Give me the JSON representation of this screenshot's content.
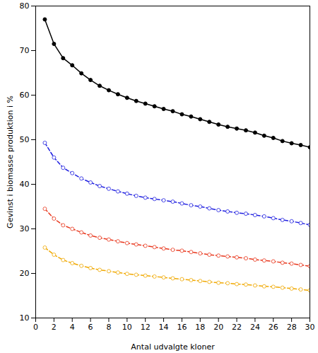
{
  "chart_data": {
    "type": "line",
    "x_label": "Antal udvalgte kloner",
    "y_label": "Gevinst i biomasse produktion i %",
    "x": [
      1,
      2,
      3,
      4,
      5,
      6,
      7,
      8,
      9,
      10,
      11,
      12,
      13,
      14,
      15,
      16,
      17,
      18,
      19,
      20,
      21,
      22,
      23,
      24,
      25,
      26,
      27,
      28,
      29,
      30
    ],
    "series": [
      {
        "color": "#000000",
        "marker": "filled_circle",
        "line_style": "solid",
        "values": [
          77,
          71.5,
          68.3,
          66.7,
          64.9,
          63.4,
          62.1,
          61.1,
          60.2,
          59.4,
          58.7,
          58.1,
          57.5,
          56.9,
          56.4,
          55.7,
          55.2,
          54.6,
          54.0,
          53.4,
          52.9,
          52.5,
          52.1,
          51.6,
          50.9,
          50.4,
          49.7,
          49.2,
          48.8,
          48.3
        ]
      },
      {
        "color": "#1f1fe0",
        "marker": "open_circle",
        "line_style": "dashed",
        "values": [
          49.3,
          46.0,
          43.7,
          42.5,
          41.3,
          40.4,
          39.6,
          39.0,
          38.4,
          37.9,
          37.4,
          37.0,
          36.7,
          36.4,
          36.1,
          35.7,
          35.3,
          35.0,
          34.6,
          34.2,
          33.9,
          33.6,
          33.4,
          33.1,
          32.8,
          32.4,
          32.0,
          31.7,
          31.3,
          30.9
        ]
      },
      {
        "color": "#e8361c",
        "marker": "open_circle",
        "line_style": "dashed",
        "values": [
          34.5,
          32.3,
          30.8,
          30.0,
          29.2,
          28.5,
          28.0,
          27.6,
          27.2,
          26.8,
          26.5,
          26.2,
          25.9,
          25.6,
          25.3,
          25.1,
          24.8,
          24.5,
          24.2,
          24.0,
          23.8,
          23.6,
          23.4,
          23.1,
          22.9,
          22.7,
          22.4,
          22.2,
          21.9,
          21.6
        ]
      },
      {
        "color": "#f0a800",
        "marker": "open_circle",
        "line_style": "dashed",
        "values": [
          25.8,
          24.2,
          23.0,
          22.3,
          21.7,
          21.2,
          20.8,
          20.5,
          20.2,
          19.9,
          19.7,
          19.5,
          19.3,
          19.1,
          18.9,
          18.7,
          18.5,
          18.3,
          18.1,
          17.9,
          17.8,
          17.6,
          17.5,
          17.3,
          17.1,
          17.0,
          16.8,
          16.6,
          16.4,
          16.2
        ]
      }
    ],
    "xlim": [
      0,
      30
    ],
    "xticks": [
      0,
      2,
      4,
      6,
      8,
      10,
      12,
      14,
      16,
      18,
      20,
      22,
      24,
      26,
      28,
      30
    ],
    "ylim": [
      10,
      80
    ],
    "yticks": [
      10,
      20,
      30,
      40,
      50,
      60,
      70,
      80
    ],
    "grid": false
  }
}
